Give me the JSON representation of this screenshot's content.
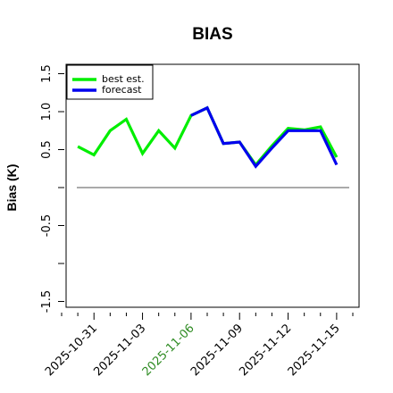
{
  "chart_data": {
    "type": "line",
    "title": "BIAS",
    "ylabel": "Bias (K)",
    "xlabel": "",
    "ylim": [
      -1.6,
      1.65
    ],
    "yticks": [
      -1.5,
      -0.5,
      0.5,
      1.0,
      1.5
    ],
    "yticklabels": [
      "-1.5",
      "-0.5",
      "0.5",
      "1.0",
      "1.5"
    ],
    "xlim": [
      "2025-10-29",
      "2025-11-16"
    ],
    "xticks": [
      {
        "date": "2025-10-31",
        "label": "2025-10-31",
        "color": "#000000"
      },
      {
        "date": "2025-11-03",
        "label": "2025-11-03",
        "color": "#000000"
      },
      {
        "date": "2025-11-06",
        "label": "2025-11-06",
        "color": "#2e8b22"
      },
      {
        "date": "2025-11-09",
        "label": "2025-11-09",
        "color": "#000000"
      },
      {
        "date": "2025-11-12",
        "label": "2025-11-12",
        "color": "#000000"
      },
      {
        "date": "2025-11-15",
        "label": "2025-11-15",
        "color": "#000000"
      }
    ],
    "zero_line": 0,
    "legend_position": "top-left",
    "series": [
      {
        "name": "best est.",
        "color": "#00ee00",
        "x": [
          "2025-10-30",
          "2025-10-31",
          "2025-11-01",
          "2025-11-02",
          "2025-11-03",
          "2025-11-04",
          "2025-11-05",
          "2025-11-06",
          "2025-11-07",
          "2025-11-08",
          "2025-11-09",
          "2025-11-10",
          "2025-11-11",
          "2025-11-12",
          "2025-11-13",
          "2025-11-14",
          "2025-11-15"
        ],
        "y": [
          0.54,
          0.43,
          0.75,
          0.9,
          0.45,
          0.75,
          0.52,
          0.95,
          1.05,
          0.58,
          0.6,
          0.3,
          0.55,
          0.78,
          0.76,
          0.8,
          0.4
        ]
      },
      {
        "name": "forecast",
        "color": "#0000ee",
        "x": [
          "2025-11-06",
          "2025-11-07",
          "2025-11-08",
          "2025-11-09",
          "2025-11-10",
          "2025-11-11",
          "2025-11-12",
          "2025-11-13",
          "2025-11-14",
          "2025-11-15"
        ],
        "y": [
          0.95,
          1.05,
          0.58,
          0.6,
          0.28,
          0.52,
          0.75,
          0.75,
          0.75,
          0.3
        ]
      }
    ]
  }
}
